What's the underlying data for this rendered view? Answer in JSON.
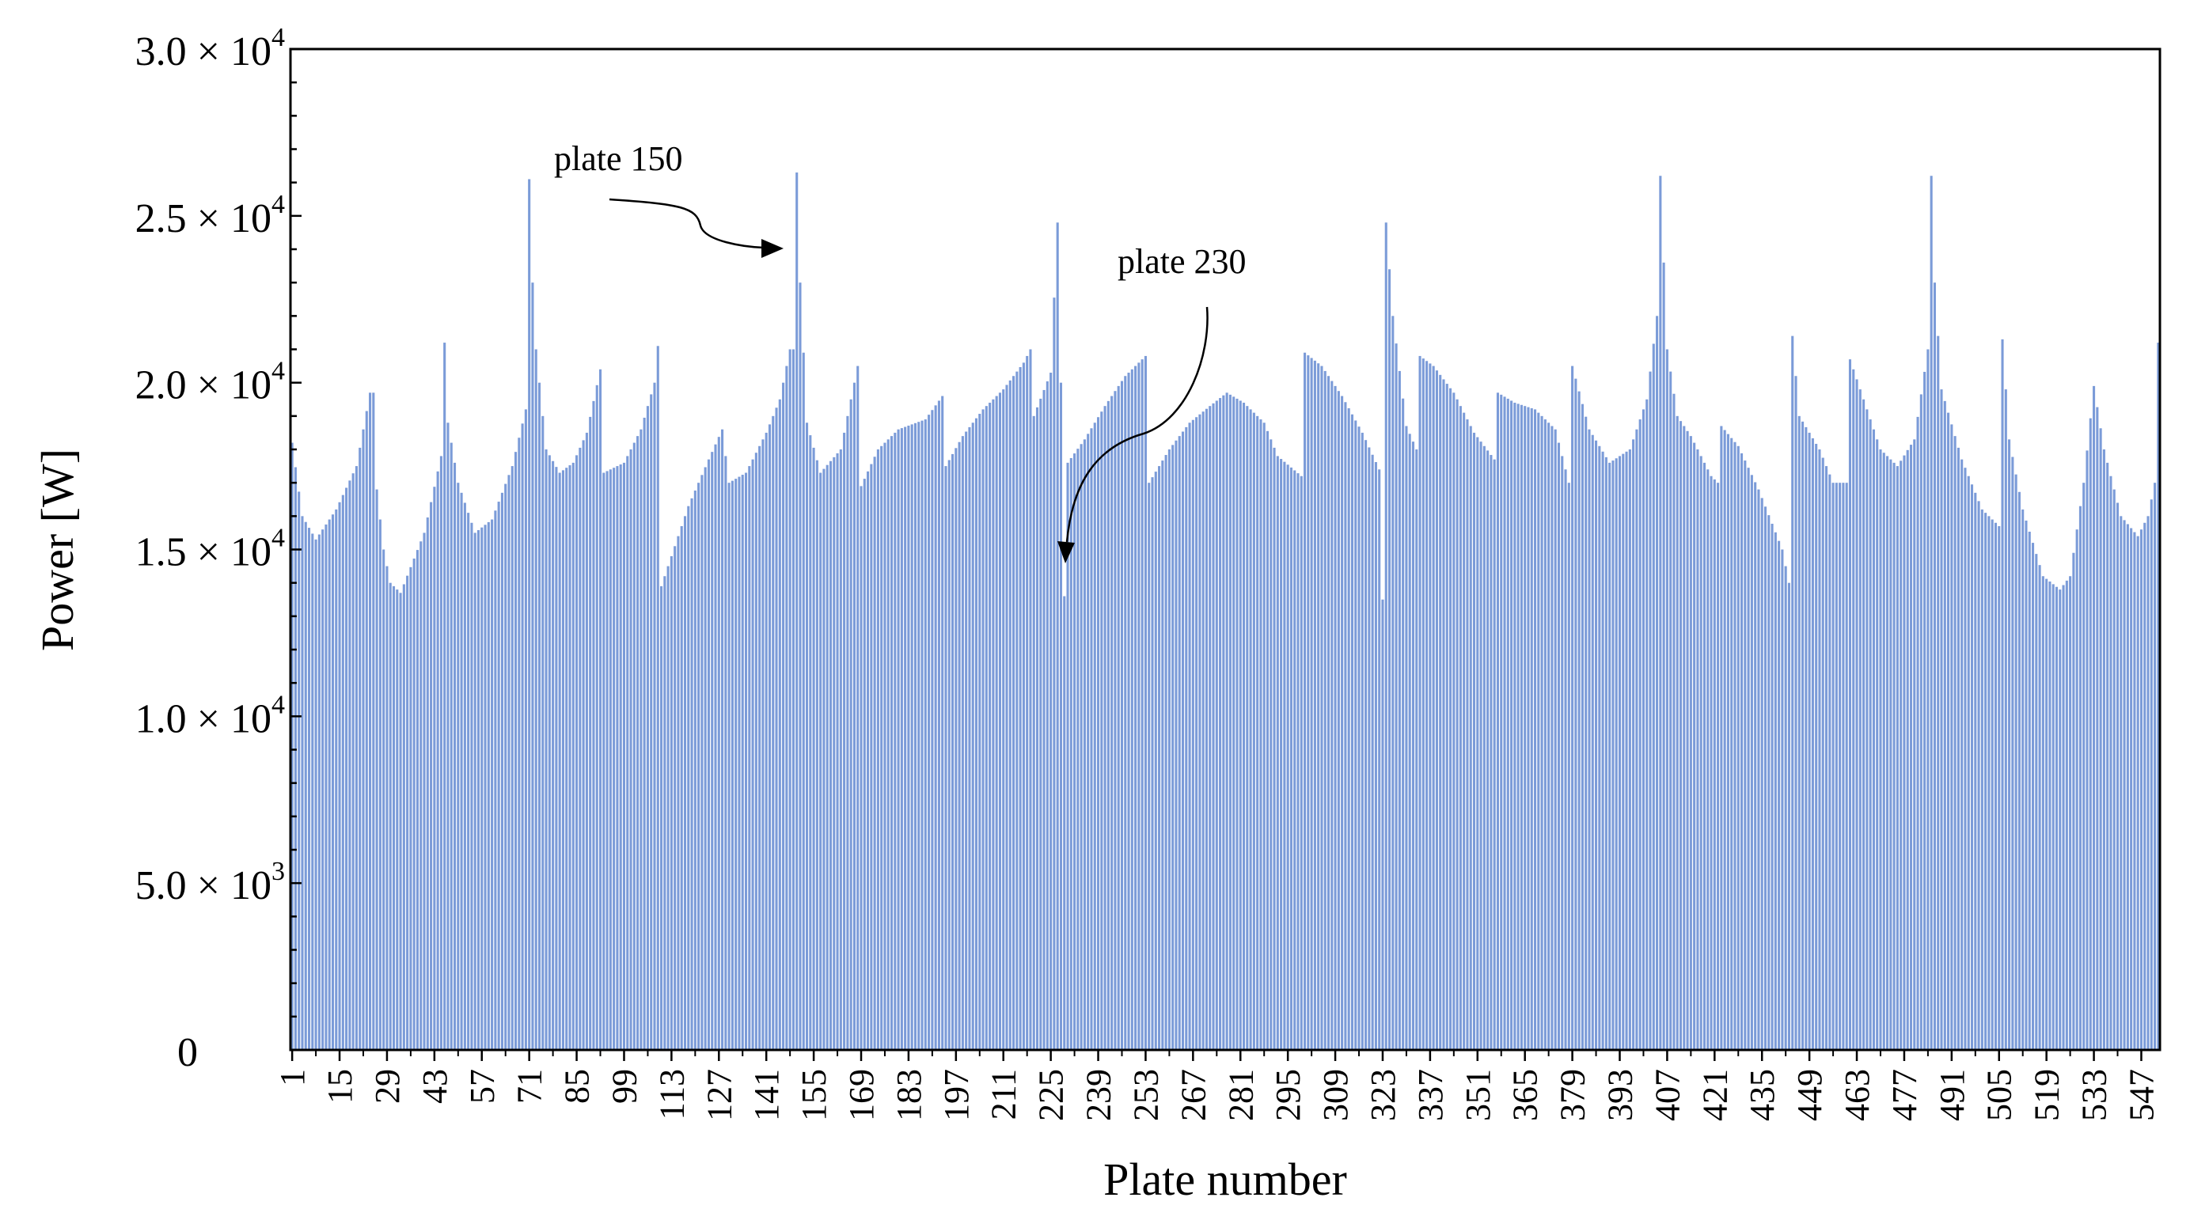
{
  "chart_data": {
    "type": "bar",
    "xlabel": "Plate number",
    "ylabel": "Power [W]",
    "xlim": [
      1,
      552
    ],
    "ylim": [
      0,
      30000
    ],
    "grid": false,
    "bar_color": "#7b9bd8",
    "x_tick_labels": [
      "1",
      "15",
      "29",
      "43",
      "57",
      "71",
      "85",
      "99",
      "113",
      "127",
      "141",
      "155",
      "169",
      "183",
      "197",
      "211",
      "225",
      "239",
      "253",
      "267",
      "281",
      "295",
      "309",
      "323",
      "337",
      "351",
      "365",
      "379",
      "393",
      "407",
      "421",
      "435",
      "449",
      "463",
      "477",
      "491",
      "505",
      "519",
      "533",
      "547"
    ],
    "y_ticks": [
      {
        "value": 0,
        "mantissa": "0",
        "exp": ""
      },
      {
        "value": 5000,
        "mantissa": "5.0 × 10",
        "exp": "3"
      },
      {
        "value": 10000,
        "mantissa": "1.0 × 10",
        "exp": "4"
      },
      {
        "value": 15000,
        "mantissa": "1.5 × 10",
        "exp": "4"
      },
      {
        "value": 20000,
        "mantissa": "2.0 × 10",
        "exp": "4"
      },
      {
        "value": 25000,
        "mantissa": "2.5 × 10",
        "exp": "4"
      },
      {
        "value": 30000,
        "mantissa": "3.0 × 10",
        "exp": "4"
      }
    ],
    "annotations": [
      {
        "text": "plate 150",
        "target_x": 150,
        "target_y": 24000
      },
      {
        "text": "plate 230",
        "target_x": 229,
        "target_y": 14500
      }
    ],
    "profile_anchors": [
      [
        1,
        18200
      ],
      [
        4,
        16000
      ],
      [
        8,
        15300
      ],
      [
        14,
        16200
      ],
      [
        20,
        17500
      ],
      [
        24,
        19700
      ],
      [
        25,
        19700
      ],
      [
        26,
        16800
      ],
      [
        28,
        15000
      ],
      [
        30,
        14000
      ],
      [
        33,
        13700
      ],
      [
        40,
        15500
      ],
      [
        45,
        17800
      ],
      [
        46,
        21200
      ],
      [
        47,
        18800
      ],
      [
        50,
        17000
      ],
      [
        55,
        15500
      ],
      [
        60,
        15900
      ],
      [
        66,
        17500
      ],
      [
        70,
        19200
      ],
      [
        71,
        26100
      ],
      [
        72,
        23000
      ],
      [
        73,
        21000
      ],
      [
        76,
        18000
      ],
      [
        80,
        17300
      ],
      [
        84,
        17600
      ],
      [
        88,
        18500
      ],
      [
        92,
        20400
      ],
      [
        93,
        17300
      ],
      [
        99,
        17600
      ],
      [
        104,
        18600
      ],
      [
        108,
        20000
      ],
      [
        109,
        21100
      ],
      [
        110,
        13900
      ],
      [
        113,
        14800
      ],
      [
        118,
        16300
      ],
      [
        124,
        17700
      ],
      [
        128,
        18600
      ],
      [
        130,
        17000
      ],
      [
        135,
        17300
      ],
      [
        141,
        18500
      ],
      [
        145,
        19500
      ],
      [
        148,
        21000
      ],
      [
        149,
        21000
      ],
      [
        150,
        26300
      ],
      [
        151,
        23000
      ],
      [
        153,
        18800
      ],
      [
        157,
        17300
      ],
      [
        163,
        18000
      ],
      [
        168,
        20500
      ],
      [
        169,
        16900
      ],
      [
        174,
        18000
      ],
      [
        180,
        18600
      ],
      [
        188,
        18900
      ],
      [
        193,
        19600
      ],
      [
        194,
        17500
      ],
      [
        199,
        18400
      ],
      [
        205,
        19200
      ],
      [
        211,
        19800
      ],
      [
        217,
        20600
      ],
      [
        219,
        21000
      ],
      [
        220,
        19000
      ],
      [
        225,
        20300
      ],
      [
        227,
        24800
      ],
      [
        228,
        20000
      ],
      [
        229,
        13600
      ],
      [
        230,
        17600
      ],
      [
        235,
        18300
      ],
      [
        241,
        19300
      ],
      [
        247,
        20200
      ],
      [
        253,
        20800
      ],
      [
        254,
        17000
      ],
      [
        260,
        18000
      ],
      [
        266,
        18800
      ],
      [
        272,
        19300
      ],
      [
        277,
        19700
      ],
      [
        282,
        19400
      ],
      [
        288,
        18800
      ],
      [
        292,
        17800
      ],
      [
        299,
        17200
      ],
      [
        300,
        20900
      ],
      [
        305,
        20500
      ],
      [
        311,
        19600
      ],
      [
        317,
        18500
      ],
      [
        322,
        17400
      ],
      [
        323,
        13500
      ],
      [
        324,
        24800
      ],
      [
        326,
        22000
      ],
      [
        330,
        18700
      ],
      [
        333,
        18000
      ],
      [
        334,
        20800
      ],
      [
        338,
        20500
      ],
      [
        344,
        19700
      ],
      [
        350,
        18500
      ],
      [
        356,
        17700
      ],
      [
        357,
        19700
      ],
      [
        362,
        19400
      ],
      [
        368,
        19200
      ],
      [
        374,
        18600
      ],
      [
        378,
        17000
      ],
      [
        379,
        20500
      ],
      [
        384,
        18600
      ],
      [
        390,
        17600
      ],
      [
        396,
        18000
      ],
      [
        401,
        19500
      ],
      [
        404,
        22000
      ],
      [
        405,
        26200
      ],
      [
        407,
        21000
      ],
      [
        410,
        19000
      ],
      [
        414,
        18400
      ],
      [
        420,
        17200
      ],
      [
        422,
        17000
      ],
      [
        423,
        18700
      ],
      [
        428,
        18100
      ],
      [
        434,
        16800
      ],
      [
        441,
        15000
      ],
      [
        443,
        14000
      ],
      [
        444,
        21400
      ],
      [
        446,
        19000
      ],
      [
        452,
        18000
      ],
      [
        456,
        17000
      ],
      [
        460,
        17000
      ],
      [
        461,
        20700
      ],
      [
        465,
        19500
      ],
      [
        470,
        18000
      ],
      [
        475,
        17500
      ],
      [
        480,
        18300
      ],
      [
        484,
        21000
      ],
      [
        485,
        26200
      ],
      [
        486,
        23000
      ],
      [
        488,
        19800
      ],
      [
        494,
        17700
      ],
      [
        500,
        16200
      ],
      [
        505,
        15700
      ],
      [
        506,
        21300
      ],
      [
        508,
        18300
      ],
      [
        512,
        16200
      ],
      [
        518,
        14200
      ],
      [
        523,
        13800
      ],
      [
        526,
        14200
      ],
      [
        530,
        17000
      ],
      [
        533,
        19900
      ],
      [
        536,
        18000
      ],
      [
        541,
        16000
      ],
      [
        546,
        15400
      ],
      [
        549,
        16000
      ],
      [
        551,
        17000
      ],
      [
        552,
        21200
      ]
    ]
  }
}
